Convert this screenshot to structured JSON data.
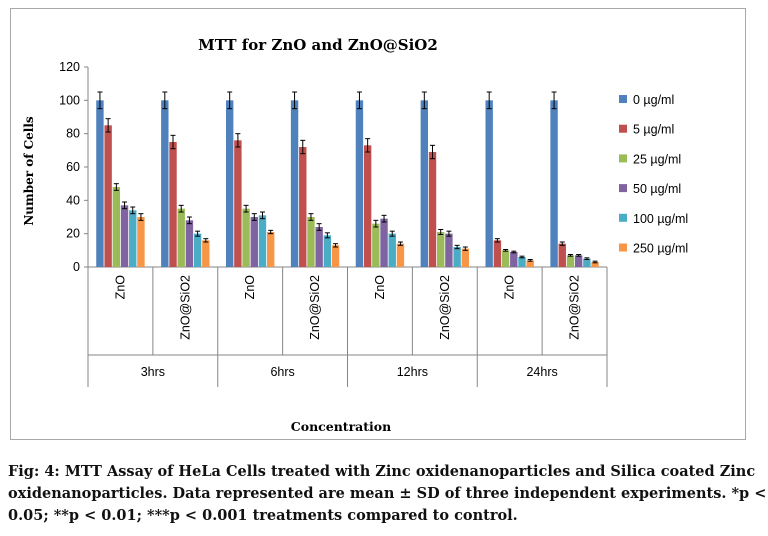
{
  "chart_data": {
    "type": "bar",
    "title": "MTT for ZnO and ZnO@SiO2",
    "xlabel": "Concentration",
    "ylabel": "Number of Cells",
    "ylim": [
      0,
      120
    ],
    "yticks": [
      "0",
      "20",
      "40",
      "60",
      "80",
      "100",
      "120"
    ],
    "grid": false,
    "legend_position": "right",
    "error_bars": true,
    "groups": [
      {
        "label": "3hrs",
        "categories": [
          "ZnO",
          "ZnO@SiO2"
        ]
      },
      {
        "label": "6hrs",
        "categories": [
          "ZnO",
          "ZnO@SiO2"
        ]
      },
      {
        "label": "12hrs",
        "categories": [
          "ZnO",
          "ZnO@SiO2"
        ]
      },
      {
        "label": "24hrs",
        "categories": [
          "ZnO",
          "ZnO@SiO2"
        ]
      }
    ],
    "series": [
      {
        "name": "0 µg/ml",
        "color": "#4f81bd",
        "values": [
          100,
          100,
          100,
          100,
          100,
          100,
          100,
          100
        ],
        "errors": [
          5,
          5,
          5,
          5,
          5,
          5,
          5,
          5
        ]
      },
      {
        "name": "5 µg/ml",
        "color": "#c0504d",
        "values": [
          85,
          75,
          76,
          72,
          73,
          69,
          16,
          14
        ],
        "errors": [
          4,
          4,
          4,
          4,
          4,
          4,
          1,
          1
        ]
      },
      {
        "name": "25 µg/ml",
        "color": "#9bbb59",
        "values": [
          48,
          35,
          35,
          30,
          26,
          21,
          10,
          7
        ],
        "errors": [
          2,
          2,
          2,
          2,
          2,
          1.5,
          0.5,
          0.5
        ]
      },
      {
        "name": "50 µg/ml",
        "color": "#8064a2",
        "values": [
          37,
          28,
          30,
          24,
          29,
          20,
          9,
          7
        ],
        "errors": [
          2,
          2,
          2,
          2,
          2,
          1.5,
          0.5,
          0.5
        ]
      },
      {
        "name": "100 µg/ml",
        "color": "#4bacc6",
        "values": [
          34,
          20,
          31,
          19,
          20,
          12,
          6,
          5
        ],
        "errors": [
          2,
          1.5,
          2,
          1.5,
          1.5,
          1,
          0.5,
          0.5
        ]
      },
      {
        "name": "250 µg/ml",
        "color": "#f79646",
        "values": [
          30,
          16,
          21,
          13,
          14,
          11,
          4,
          3
        ],
        "errors": [
          2,
          1,
          1,
          1,
          1,
          1,
          0.5,
          0.5
        ]
      }
    ]
  },
  "caption": {
    "line1": "Fig: 4: MTT Assay of HeLa Cells treated with Zinc oxidenanoparticles and Silica coated Zinc",
    "line2": "oxidenanoparticles. Data represented are mean ± SD of three independent experiments. *p <",
    "line3": "0.05; **p < 0.01; ***p < 0.001 treatments compared to control."
  }
}
